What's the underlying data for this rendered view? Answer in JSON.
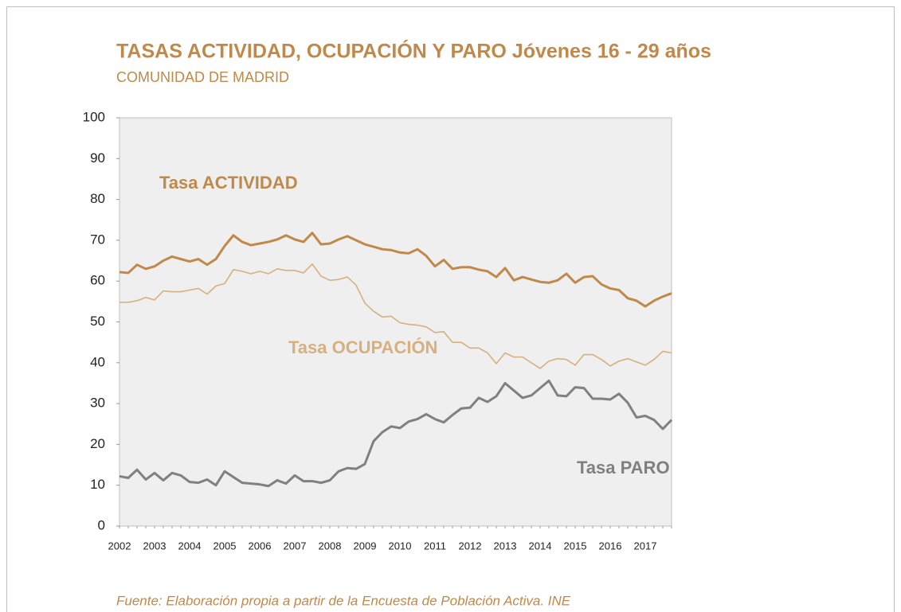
{
  "chart_data": {
    "type": "line",
    "title": "TASAS ACTIVIDAD, OCUPACIÓN Y PARO Jóvenes 16 - 29 años",
    "subtitle": "COMUNIDAD DE MADRID",
    "source": "Fuente: Elaboración propia a partir de la Encuesta de Población Activa. INE",
    "categories": [
      "2002",
      null,
      null,
      null,
      "2003",
      null,
      null,
      null,
      "2004",
      null,
      null,
      null,
      "2005",
      null,
      null,
      null,
      "2006",
      null,
      null,
      null,
      "2007",
      null,
      null,
      null,
      "2008",
      null,
      null,
      null,
      "2009",
      null,
      null,
      null,
      "2010",
      null,
      null,
      null,
      "2011",
      null,
      null,
      null,
      "2012",
      null,
      null,
      null,
      "2013",
      null,
      null,
      null,
      "2014",
      null,
      null,
      null,
      "2015",
      null,
      null,
      null,
      "2016",
      null,
      null,
      null,
      "2017",
      null,
      null,
      null
    ],
    "ylim": [
      0,
      100
    ],
    "yticks": [
      0,
      10,
      20,
      30,
      40,
      50,
      60,
      70,
      80,
      90,
      100
    ],
    "grid": false,
    "series": [
      {
        "name": "Tasa ACTIVIDAD",
        "color": "#c0894a",
        "width": 3,
        "values": [
          62.2,
          62.0,
          64.0,
          63.0,
          63.6,
          65.0,
          66.0,
          65.4,
          64.8,
          65.4,
          64.0,
          65.4,
          68.6,
          71.2,
          69.6,
          68.8,
          69.2,
          69.6,
          70.2,
          71.2,
          70.2,
          69.6,
          71.8,
          69.0,
          69.2,
          70.2,
          71.0,
          70.0,
          69.0,
          68.4,
          67.8,
          67.6,
          67.0,
          66.8,
          67.8,
          66.2,
          63.6,
          65.2,
          63.0,
          63.4,
          63.4,
          62.8,
          62.4,
          61.0,
          63.2,
          60.2,
          61.0,
          60.4,
          59.8,
          59.6,
          60.2,
          61.8,
          59.6,
          61.0,
          61.2,
          59.2,
          58.2,
          57.8,
          55.8,
          55.2,
          53.8,
          55.2,
          56.2,
          57.0
        ]
      },
      {
        "name": "Tasa OCUPACIÓN",
        "color": "#d7b07f",
        "width": 1.6,
        "values": [
          54.8,
          54.8,
          55.2,
          56.0,
          55.4,
          57.6,
          57.4,
          57.4,
          57.8,
          58.2,
          56.8,
          58.8,
          59.4,
          62.8,
          62.4,
          61.8,
          62.4,
          61.8,
          63.0,
          62.6,
          62.6,
          62.0,
          64.2,
          61.2,
          60.2,
          60.4,
          61.0,
          59.0,
          54.6,
          52.6,
          51.2,
          51.4,
          49.8,
          49.4,
          49.2,
          48.8,
          47.4,
          47.6,
          45.0,
          45.0,
          43.6,
          43.6,
          42.4,
          39.8,
          42.4,
          41.4,
          41.4,
          40.0,
          38.6,
          40.4,
          41.0,
          40.8,
          39.4,
          42.0,
          42.0,
          40.8,
          39.2,
          40.4,
          41.0,
          40.2,
          39.4,
          40.8,
          42.8,
          42.4
        ]
      },
      {
        "name": "Tasa PARO",
        "color": "#808080",
        "width": 3,
        "values": [
          12.2,
          11.8,
          13.8,
          11.4,
          13.0,
          11.2,
          13.0,
          12.4,
          10.8,
          10.6,
          11.4,
          10.0,
          13.4,
          12.0,
          10.6,
          10.4,
          10.2,
          9.8,
          11.2,
          10.4,
          12.4,
          11.0,
          11.0,
          10.6,
          11.2,
          13.4,
          14.2,
          14.0,
          15.2,
          20.8,
          23.0,
          24.4,
          24.0,
          25.6,
          26.2,
          27.4,
          26.2,
          25.4,
          27.2,
          28.8,
          29.0,
          31.4,
          30.4,
          31.8,
          35.0,
          33.2,
          31.4,
          32.0,
          33.8,
          35.6,
          32.0,
          31.8,
          34.0,
          33.8,
          31.2,
          31.2,
          31.0,
          32.4,
          30.2,
          26.6,
          27.0,
          26.0,
          23.8,
          26.0
        ]
      }
    ]
  }
}
